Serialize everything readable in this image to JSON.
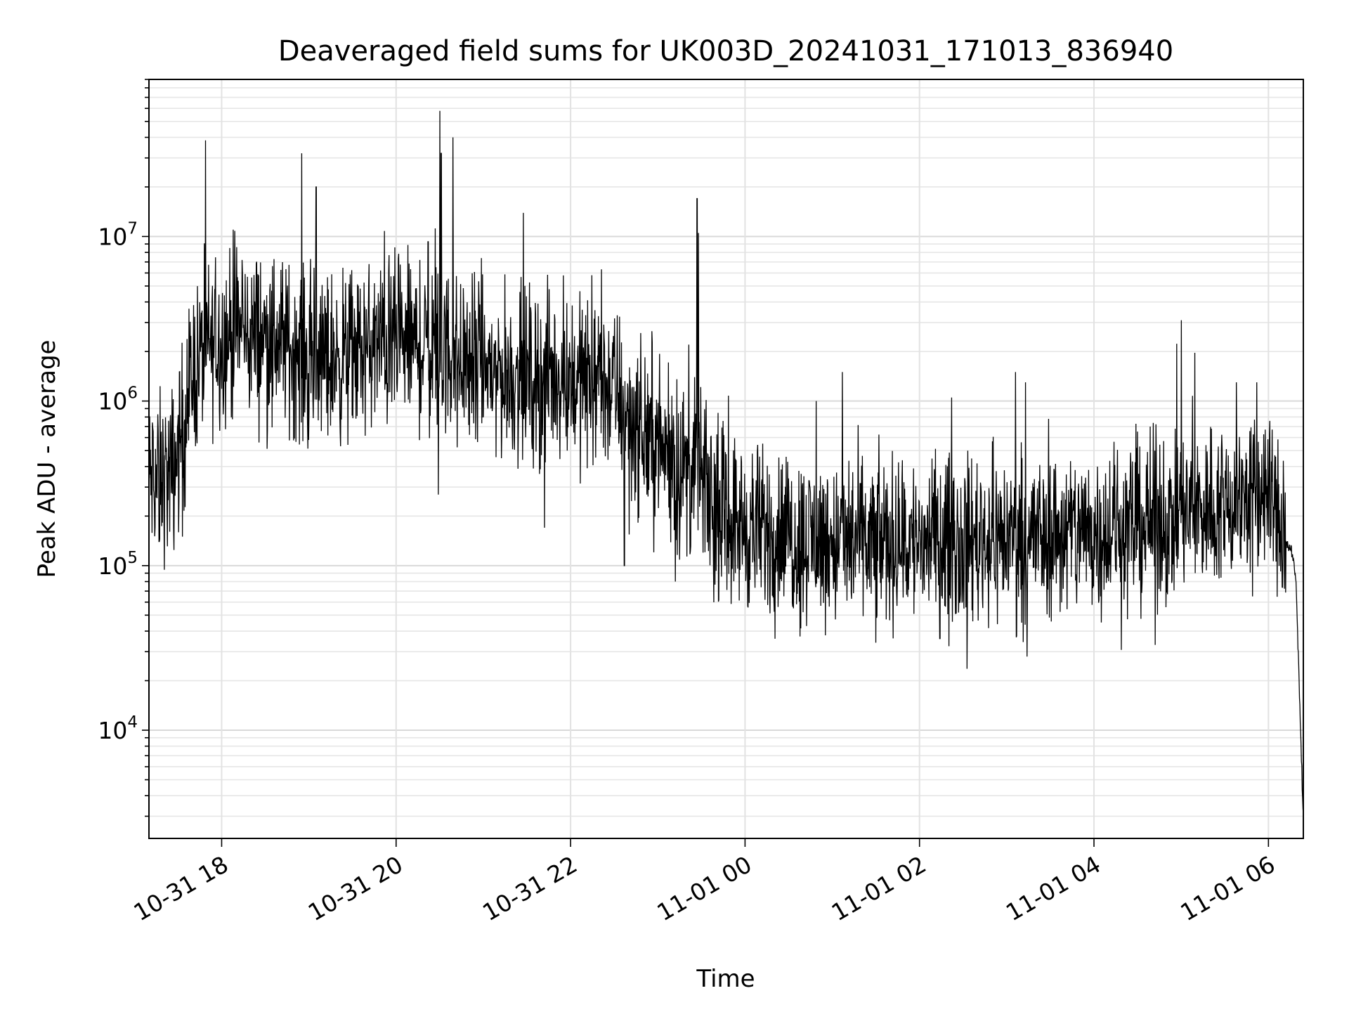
{
  "chart_data": {
    "type": "line",
    "title": "Deaveraged field sums for UK003D_20241031_171013_836940",
    "xlabel": "Time",
    "ylabel": "Peak ADU - average",
    "x_range": [
      "2024-10-31 17:10",
      "2024-11-01 06:24"
    ],
    "y_scale": "log",
    "ylim": [
      2200,
      90000000
    ],
    "grid": "major and minor",
    "series_color": "#000000",
    "x_ticks": [
      {
        "value": "2024-10-31 18:00",
        "label": "10-31 18"
      },
      {
        "value": "2024-10-31 20:00",
        "label": "10-31 20"
      },
      {
        "value": "2024-10-31 22:00",
        "label": "10-31 22"
      },
      {
        "value": "2024-11-01 00:00",
        "label": "11-01 00"
      },
      {
        "value": "2024-11-01 02:00",
        "label": "11-01 02"
      },
      {
        "value": "2024-11-01 04:00",
        "label": "11-01 04"
      },
      {
        "value": "2024-11-01 06:00",
        "label": "11-01 06"
      }
    ],
    "y_ticks": [
      {
        "value": 10000,
        "base": "10",
        "exp": "4"
      },
      {
        "value": 100000,
        "base": "10",
        "exp": "5"
      },
      {
        "value": 1000000,
        "base": "10",
        "exp": "6"
      },
      {
        "value": 10000000,
        "base": "10",
        "exp": "7"
      }
    ],
    "series": [
      {
        "baseline": [
          [
            "2024-10-31 17:10",
            330000
          ],
          [
            "2024-10-31 17:25",
            350000
          ],
          [
            "2024-10-31 17:30",
            500000
          ],
          [
            "2024-10-31 17:40",
            1500000
          ],
          [
            "2024-10-31 17:50",
            2100000
          ],
          [
            "2024-10-31 18:10",
            2600000
          ],
          [
            "2024-10-31 18:40",
            2400000
          ],
          [
            "2024-10-31 19:00",
            1700000
          ],
          [
            "2024-10-31 19:30",
            1900000
          ],
          [
            "2024-10-31 20:00",
            2300000
          ],
          [
            "2024-10-31 20:40",
            1900000
          ],
          [
            "2024-10-31 21:20",
            1400000
          ],
          [
            "2024-10-31 22:00",
            1400000
          ],
          [
            "2024-10-31 22:30",
            1200000
          ],
          [
            "2024-10-31 22:45",
            700000
          ],
          [
            "2024-10-31 23:10",
            450000
          ],
          [
            "2024-10-31 23:30",
            320000
          ],
          [
            "2024-10-31 23:40",
            220000
          ],
          [
            "2024-11-01 00:00",
            170000
          ],
          [
            "2024-11-01 00:30",
            150000
          ],
          [
            "2024-11-01 01:00",
            140000
          ],
          [
            "2024-11-01 02:00",
            140000
          ],
          [
            "2024-11-01 03:00",
            150000
          ],
          [
            "2024-11-01 04:00",
            160000
          ],
          [
            "2024-11-01 05:00",
            200000
          ],
          [
            "2024-11-01 05:30",
            240000
          ],
          [
            "2024-11-01 06:00",
            280000
          ],
          [
            "2024-11-01 06:10",
            150000
          ],
          [
            "2024-11-01 06:16",
            120000
          ],
          [
            "2024-11-01 06:19",
            80000
          ],
          [
            "2024-11-01 06:21",
            20000
          ],
          [
            "2024-11-01 06:24",
            3000
          ]
        ],
        "spikes": [
          [
            "2024-10-31 18:08",
            11000000
          ],
          [
            "2024-10-31 18:14",
            7200000
          ],
          [
            "2024-10-31 18:55",
            32000000
          ],
          [
            "2024-10-31 19:05",
            20000000
          ],
          [
            "2024-10-31 19:52",
            10800000
          ],
          [
            "2024-10-31 20:22",
            9300000
          ],
          [
            "2024-10-31 20:27",
            11200000
          ],
          [
            "2024-10-31 20:30",
            58000000
          ],
          [
            "2024-10-31 20:31",
            32000000
          ],
          [
            "2024-10-31 20:39",
            40000000
          ],
          [
            "2024-10-31 23:27",
            17000000
          ],
          [
            "2024-10-31 23:28",
            10500000
          ],
          [
            "2024-10-31 21:55",
            5800000
          ],
          [
            "2024-11-01 00:49",
            1000000
          ],
          [
            "2024-11-01 01:07",
            1500000
          ],
          [
            "2024-11-01 02:22",
            1050000
          ],
          [
            "2024-11-01 03:06",
            1500000
          ],
          [
            "2024-11-01 03:13",
            1300000
          ],
          [
            "2024-11-01 05:00",
            3100000
          ],
          [
            "2024-11-01 05:38",
            1300000
          ],
          [
            "2024-11-01 05:52",
            1300000
          ]
        ],
        "dips": [
          [
            "2024-10-31 17:17",
            140000
          ],
          [
            "2024-10-31 17:27",
            170000
          ],
          [
            "2024-10-31 20:29",
            270000
          ],
          [
            "2024-10-31 21:42",
            170000
          ],
          [
            "2024-10-31 22:37",
            100000
          ],
          [
            "2024-10-31 23:12",
            80000
          ],
          [
            "2024-11-01 01:30",
            34000
          ],
          [
            "2024-11-01 02:14",
            36000
          ],
          [
            "2024-11-01 03:14",
            28000
          ],
          [
            "2024-11-01 04:42",
            33000
          ]
        ]
      }
    ]
  }
}
